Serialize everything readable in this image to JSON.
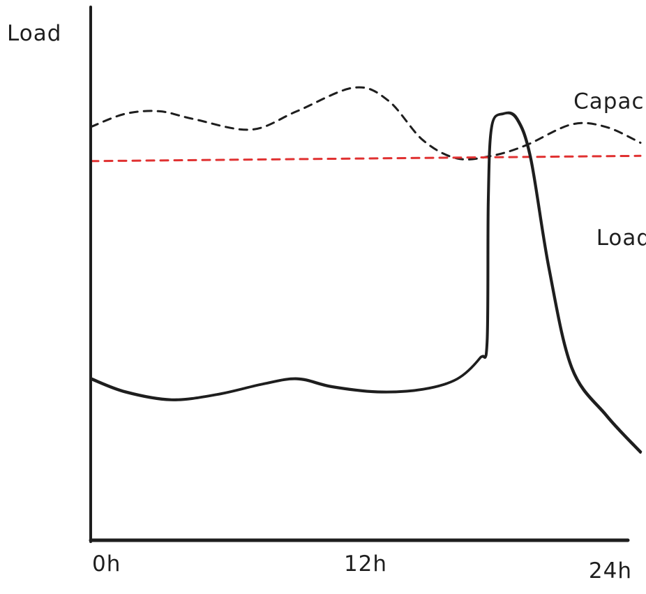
{
  "chart_data": {
    "type": "line",
    "title": "",
    "ylabel": "Load",
    "xlabel": "",
    "x_ticks": [
      {
        "value": 0,
        "label": "0h"
      },
      {
        "value": 12,
        "label": "12h"
      },
      {
        "value": 24,
        "label": "24h"
      }
    ],
    "xlim": [
      0,
      24
    ],
    "ylim": [
      0,
      100
    ],
    "grid": false,
    "series": [
      {
        "name": "Capacity",
        "style": "dashed",
        "color": "#1e1e1e",
        "points": [
          [
            0,
            79
          ],
          [
            1.5,
            81.5
          ],
          [
            3,
            82
          ],
          [
            4.5,
            80.5
          ],
          [
            7,
            78.5
          ],
          [
            9,
            82
          ],
          [
            11.5,
            86.5
          ],
          [
            13,
            84
          ],
          [
            14.5,
            76.5
          ],
          [
            16,
            73
          ],
          [
            17.5,
            73.5
          ],
          [
            19,
            75.5
          ],
          [
            21,
            79.5
          ],
          [
            22.5,
            79
          ],
          [
            24,
            76
          ]
        ]
      },
      {
        "name": "",
        "style": "dashed",
        "color": "#e03131",
        "points": [
          [
            0,
            72.5
          ],
          [
            24,
            73.5
          ]
        ]
      },
      {
        "name": "Load",
        "style": "solid",
        "color": "#1e1e1e",
        "points": [
          [
            0,
            31
          ],
          [
            1.5,
            28.5
          ],
          [
            3.5,
            27
          ],
          [
            5.5,
            28
          ],
          [
            7.5,
            30
          ],
          [
            9,
            31
          ],
          [
            10.5,
            29.5
          ],
          [
            12.5,
            28.5
          ],
          [
            14.5,
            29
          ],
          [
            16,
            31
          ],
          [
            17,
            35
          ],
          [
            17.3,
            38
          ],
          [
            17.35,
            65
          ],
          [
            17.5,
            79
          ],
          [
            18,
            81.5
          ],
          [
            18.6,
            80.5
          ],
          [
            19.2,
            73
          ],
          [
            20,
            52
          ],
          [
            21,
            33
          ],
          [
            22.5,
            24
          ],
          [
            24,
            17
          ]
        ]
      }
    ],
    "annotations": [
      {
        "text": "Capacity",
        "x": 22.2,
        "y": 84
      },
      {
        "text": "Load",
        "x": 22.2,
        "y": 58
      }
    ]
  }
}
